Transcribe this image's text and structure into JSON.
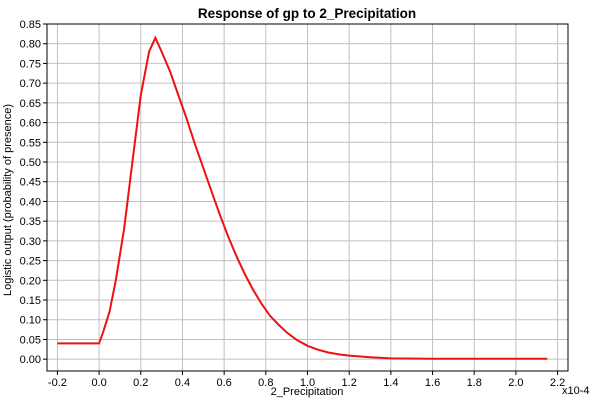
{
  "chart_data": {
    "type": "line",
    "title": "Response of gp to 2_Precipitation",
    "xlabel": "2_Precipitation",
    "ylabel": "Logistic output (probability of presence)",
    "x_multiplier_label": "x10-4",
    "xlim": [
      -0.25,
      2.25
    ],
    "ylim": [
      -0.03,
      0.85
    ],
    "xticks": [
      -0.2,
      0.0,
      0.2,
      0.4,
      0.6,
      0.8,
      1.0,
      1.2,
      1.4,
      1.6,
      1.8,
      2.0,
      2.2
    ],
    "xtick_labels": [
      "-0.2",
      "0.0",
      "0.2",
      "0.4",
      "0.6",
      "0.8",
      "1.0",
      "1.2",
      "1.4",
      "1.6",
      "1.8",
      "2.0",
      "2.2"
    ],
    "yticks": [
      0.0,
      0.05,
      0.1,
      0.15,
      0.2,
      0.25,
      0.3,
      0.35,
      0.4,
      0.45,
      0.5,
      0.55,
      0.6,
      0.65,
      0.7,
      0.75,
      0.8,
      0.85
    ],
    "ytick_labels": [
      "0.00",
      "0.05",
      "0.10",
      "0.15",
      "0.20",
      "0.25",
      "0.30",
      "0.35",
      "0.40",
      "0.45",
      "0.50",
      "0.55",
      "0.60",
      "0.65",
      "0.70",
      "0.75",
      "0.80",
      "0.85"
    ],
    "grid": true,
    "line_color": "#ee1111",
    "series": [
      {
        "x": [
          -0.2,
          -0.1,
          -0.02,
          0.0,
          0.02,
          0.05,
          0.08,
          0.12,
          0.16,
          0.2,
          0.24,
          0.27,
          0.3,
          0.34,
          0.38,
          0.42,
          0.46,
          0.5,
          0.54,
          0.58,
          0.62,
          0.66,
          0.7,
          0.74,
          0.78,
          0.82,
          0.86,
          0.9,
          0.95,
          1.0,
          1.05,
          1.1,
          1.15,
          1.2,
          1.3,
          1.4,
          1.6,
          1.8,
          2.0,
          2.15
        ],
        "y": [
          0.04,
          0.04,
          0.04,
          0.04,
          0.07,
          0.12,
          0.2,
          0.33,
          0.5,
          0.67,
          0.78,
          0.815,
          0.78,
          0.73,
          0.67,
          0.61,
          0.545,
          0.485,
          0.425,
          0.365,
          0.31,
          0.26,
          0.215,
          0.175,
          0.14,
          0.11,
          0.088,
          0.068,
          0.048,
          0.034,
          0.024,
          0.017,
          0.012,
          0.009,
          0.005,
          0.002,
          0.001,
          0.001,
          0.001,
          0.001
        ]
      }
    ]
  }
}
